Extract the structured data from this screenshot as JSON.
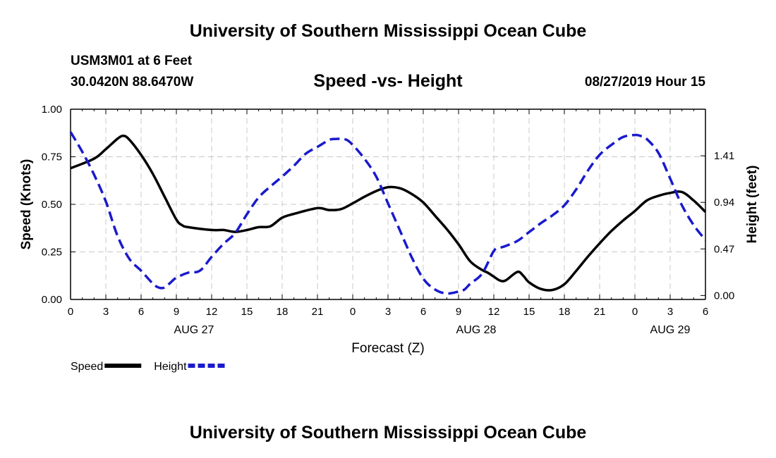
{
  "header": {
    "title": "University of Southern Mississippi Ocean Cube",
    "station": "USM3M01 at 6 Feet",
    "coords": "30.0420N 88.6470W",
    "chart_title": "Speed -vs- Height",
    "datetime": "08/27/2019 Hour 15"
  },
  "footer": {
    "title": "University of Southern Mississippi Ocean Cube"
  },
  "chart_data": {
    "type": "line",
    "title": "Speed -vs- Height",
    "xlabel": "Forecast (Z)",
    "ylabel": "Speed (Knots)",
    "y2label": "Height (feet)",
    "x_range_hours": [
      0,
      54
    ],
    "x_ticks": [
      0,
      3,
      6,
      9,
      12,
      15,
      18,
      21,
      24,
      27,
      30,
      33,
      36,
      39,
      42,
      45,
      48,
      51,
      54
    ],
    "x_tick_labels": [
      "0",
      "3",
      "6",
      "9",
      "12",
      "15",
      "18",
      "21",
      "0",
      "3",
      "6",
      "9",
      "12",
      "15",
      "18",
      "21",
      "0",
      "3",
      "6"
    ],
    "date_labels": [
      {
        "hour": 10.5,
        "label": "AUG 27"
      },
      {
        "hour": 34.5,
        "label": "AUG 28"
      },
      {
        "hour": 51,
        "label": "AUG 29"
      }
    ],
    "ylim": [
      0,
      1.0
    ],
    "y_ticks": [
      0,
      0.25,
      0.5,
      0.75,
      1.0
    ],
    "y_tick_labels": [
      "0.00",
      "0.25",
      "0.50",
      "0.75",
      "1.00"
    ],
    "y2lim": [
      -0.04,
      1.88
    ],
    "y2_ticks": [
      0,
      0.47,
      0.94,
      1.41
    ],
    "y2_tick_labels": [
      "0.00",
      "0.47",
      "0.94",
      "1.41"
    ],
    "grid": true,
    "legend": [
      {
        "name": "Speed",
        "color": "#000000",
        "style": "solid"
      },
      {
        "name": "Height",
        "color": "#1a1acc",
        "style": "dashed"
      }
    ],
    "series": [
      {
        "name": "Speed",
        "axis": "left",
        "color": "#000000",
        "style": "solid",
        "x": [
          0,
          2,
          3,
          4,
          4.5,
          5,
          6,
          7,
          8,
          9,
          9.5,
          10,
          12,
          13,
          14,
          15,
          16,
          17,
          18,
          19,
          21,
          22,
          23,
          24,
          25,
          26,
          27,
          28,
          29,
          30,
          31,
          32,
          33,
          34,
          35,
          35.5,
          36,
          36.5,
          37,
          38,
          38.5,
          39,
          40,
          41,
          42,
          43,
          44,
          45,
          46,
          47,
          48,
          49,
          50,
          51,
          52,
          53,
          54
        ],
        "y": [
          0.69,
          0.74,
          0.79,
          0.845,
          0.86,
          0.84,
          0.76,
          0.66,
          0.54,
          0.42,
          0.39,
          0.38,
          0.365,
          0.365,
          0.355,
          0.365,
          0.38,
          0.385,
          0.43,
          0.45,
          0.48,
          0.47,
          0.475,
          0.505,
          0.54,
          0.57,
          0.59,
          0.585,
          0.555,
          0.51,
          0.44,
          0.37,
          0.29,
          0.2,
          0.155,
          0.14,
          0.12,
          0.1,
          0.1,
          0.145,
          0.125,
          0.09,
          0.055,
          0.05,
          0.08,
          0.15,
          0.225,
          0.295,
          0.36,
          0.415,
          0.465,
          0.52,
          0.545,
          0.56,
          0.565,
          0.52,
          0.46
        ]
      },
      {
        "name": "Height",
        "axis": "right",
        "color": "#1a1acc",
        "style": "dashed",
        "x": [
          0,
          1,
          2,
          3,
          4,
          5,
          6,
          7,
          7.5,
          8,
          8.5,
          9,
          10,
          11,
          12,
          13,
          14,
          15,
          16,
          17,
          18,
          19,
          20,
          21,
          22,
          22.5,
          23,
          23.5,
          24,
          25,
          26,
          27,
          28,
          29,
          30,
          31,
          32,
          33,
          33.5,
          34,
          35,
          36,
          36.5,
          37,
          38,
          39,
          40,
          41,
          42,
          43,
          44,
          45,
          46,
          47,
          48,
          48.5,
          49,
          50,
          51,
          52,
          53,
          54
        ],
        "y": [
          1.65,
          1.45,
          1.22,
          0.95,
          0.6,
          0.37,
          0.25,
          0.12,
          0.08,
          0.08,
          0.13,
          0.18,
          0.23,
          0.25,
          0.39,
          0.52,
          0.63,
          0.82,
          0.99,
          1.1,
          1.2,
          1.31,
          1.43,
          1.5,
          1.57,
          1.58,
          1.58,
          1.57,
          1.52,
          1.38,
          1.2,
          0.93,
          0.66,
          0.39,
          0.17,
          0.06,
          0.02,
          0.04,
          0.06,
          0.12,
          0.22,
          0.45,
          0.48,
          0.5,
          0.55,
          0.64,
          0.73,
          0.81,
          0.91,
          1.07,
          1.26,
          1.42,
          1.52,
          1.6,
          1.62,
          1.61,
          1.58,
          1.44,
          1.18,
          0.91,
          0.71,
          0.56
        ]
      }
    ]
  }
}
